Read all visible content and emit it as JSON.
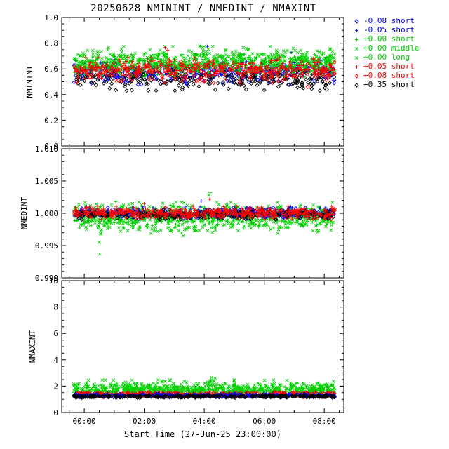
{
  "chart_data": {
    "type": "scatter",
    "title": "20250628 NMININT / NMEDINT / NMAXINT",
    "xlabel": "Start Time (27-Jun-25 23:00:00)",
    "x_ticks_hours": [
      0,
      2,
      4,
      6,
      8
    ],
    "x_tick_labels": [
      "00:00",
      "02:00",
      "04:00",
      "06:00",
      "08:00"
    ],
    "x_range_hours": [
      -0.75,
      8.65
    ],
    "x_data_range_hours": [
      -0.35,
      8.35
    ],
    "x_minor_step_hours": 0.5,
    "background_color": "#ffffff",
    "axis_color": "#000000",
    "legend": [
      {
        "label": "-0.08 short",
        "color": "#0000ff",
        "marker": "diamond"
      },
      {
        "label": "-0.05 short",
        "color": "#0000ff",
        "marker": "plus"
      },
      {
        "label": "+0.00 short",
        "color": "#00d000",
        "marker": "plus"
      },
      {
        "label": "+0.00 middle",
        "color": "#00d000",
        "marker": "x"
      },
      {
        "label": "+0.00 long",
        "color": "#00d000",
        "marker": "x"
      },
      {
        "label": "+0.05 short",
        "color": "#ff0000",
        "marker": "plus"
      },
      {
        "label": "+0.08 short",
        "color": "#ff0000",
        "marker": "diamond"
      },
      {
        "label": "+0.35 short",
        "color": "#000000",
        "marker": "diamond"
      }
    ],
    "panels": [
      {
        "ylabel": "NMININT",
        "ylim": [
          0.0,
          1.0
        ],
        "yticks": [
          0.0,
          0.2,
          0.4,
          0.6,
          0.8,
          1.0
        ],
        "ytick_labels": [
          "0.0",
          "0.2",
          "0.4",
          "0.6",
          "0.8",
          "1.0"
        ],
        "y_minor_step": 0.05,
        "series": [
          {
            "legend": 0,
            "center": 0.56,
            "spread": 0.038,
            "count": 220
          },
          {
            "legend": 1,
            "center": 0.585,
            "spread": 0.04,
            "count": 220,
            "outliers": [
              {
                "t": 4.1,
                "y": 0.775
              },
              {
                "t": 6.9,
                "y": 0.73
              }
            ]
          },
          {
            "legend": 7,
            "center": 0.53,
            "spread": 0.045,
            "count": 300,
            "outliers": [
              {
                "t": 1.05,
                "y": 0.435
              },
              {
                "t": 5.4,
                "y": 0.44
              },
              {
                "t": 7.3,
                "y": 0.45
              }
            ]
          },
          {
            "legend": 2,
            "center": 0.625,
            "spread": 0.04,
            "count": 330
          },
          {
            "legend": 3,
            "center": 0.65,
            "spread": 0.045,
            "count": 330
          },
          {
            "legend": 4,
            "center": 0.665,
            "spread": 0.05,
            "count": 330,
            "outliers": [
              {
                "t": 3.85,
                "y": 0.78
              },
              {
                "t": 3.95,
                "y": 0.765
              }
            ]
          },
          {
            "legend": 5,
            "center": 0.6,
            "spread": 0.04,
            "count": 280,
            "outliers": [
              {
                "t": 2.7,
                "y": 0.765
              },
              {
                "t": 2.78,
                "y": 0.745
              }
            ]
          },
          {
            "legend": 6,
            "center": 0.578,
            "spread": 0.04,
            "count": 240,
            "outliers": [
              {
                "t": 7.45,
                "y": 0.46
              }
            ]
          }
        ]
      },
      {
        "ylabel": "NMEDINT",
        "ylim": [
          0.99,
          1.01
        ],
        "yticks": [
          0.99,
          0.995,
          1.0,
          1.005,
          1.01
        ],
        "ytick_labels": [
          "0.990",
          "0.995",
          "1.000",
          "1.005",
          "1.010"
        ],
        "y_minor_step": 0.001,
        "series": [
          {
            "legend": 2,
            "center": 0.9995,
            "spread": 0.0008,
            "count": 330,
            "outliers": [
              {
                "t": 1.05,
                "y": 1.0018
              },
              {
                "t": 4.2,
                "y": 1.0032
              }
            ]
          },
          {
            "legend": 3,
            "center": 0.9995,
            "spread": 0.001,
            "count": 330,
            "outliers": [
              {
                "t": 0.52,
                "y": 0.9937
              },
              {
                "t": 0.5,
                "y": 0.9955
              },
              {
                "t": 0.55,
                "y": 0.9968
              },
              {
                "t": 2.9,
                "y": 0.9972
              },
              {
                "t": 3.3,
                "y": 0.9965
              },
              {
                "t": 3.35,
                "y": 0.9975
              },
              {
                "t": 3.5,
                "y": 0.9978
              },
              {
                "t": 4.15,
                "y": 1.0028
              }
            ]
          },
          {
            "legend": 4,
            "center": 0.9993,
            "spread": 0.0011,
            "count": 330
          },
          {
            "legend": 0,
            "center": 1.0,
            "spread": 0.0004,
            "count": 200
          },
          {
            "legend": 1,
            "center": 1.0,
            "spread": 0.00045,
            "count": 200,
            "outliers": [
              {
                "t": 3.9,
                "y": 1.0019
              }
            ]
          },
          {
            "legend": 7,
            "center": 0.9998,
            "spread": 0.00035,
            "count": 280
          },
          {
            "legend": 5,
            "center": 1.0001,
            "spread": 0.00045,
            "count": 280,
            "outliers": [
              {
                "t": 4.18,
                "y": 1.0022
              },
              {
                "t": 2.0,
                "y": 1.0015
              }
            ]
          },
          {
            "legend": 6,
            "center": 1.0,
            "spread": 0.0004,
            "count": 240
          }
        ]
      },
      {
        "ylabel": "NMAXINT",
        "ylim": [
          0,
          10
        ],
        "yticks": [
          0,
          2,
          4,
          6,
          8,
          10
        ],
        "ytick_labels": [
          "0",
          "2",
          "4",
          "6",
          "8",
          "10"
        ],
        "y_minor_step": 0.5,
        "series": [
          {
            "legend": 4,
            "center": 1.85,
            "spread": 0.28,
            "count": 330,
            "ymax": 3.2,
            "bumps": [
              {
                "t": 4.25,
                "amp": 1.05,
                "width": 0.1
              },
              {
                "t": 7.0,
                "amp": 0.6,
                "width": 0.09
              }
            ]
          },
          {
            "legend": 3,
            "center": 1.75,
            "spread": 0.22,
            "count": 330,
            "ymax": 3.0,
            "bumps": [
              {
                "t": 4.25,
                "amp": 0.8,
                "width": 0.09
              }
            ]
          },
          {
            "legend": 2,
            "center": 1.55,
            "spread": 0.14,
            "count": 330
          },
          {
            "legend": 5,
            "center": 1.38,
            "spread": 0.09,
            "count": 280
          },
          {
            "legend": 6,
            "center": 1.33,
            "spread": 0.08,
            "count": 240
          },
          {
            "legend": 1,
            "center": 1.3,
            "spread": 0.07,
            "count": 200
          },
          {
            "legend": 0,
            "center": 1.28,
            "spread": 0.06,
            "count": 200
          },
          {
            "legend": 7,
            "center": 1.22,
            "spread": 0.05,
            "count": 300
          }
        ]
      }
    ]
  }
}
